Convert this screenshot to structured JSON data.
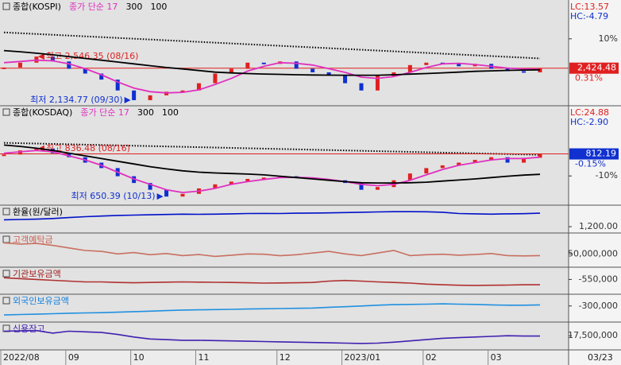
{
  "chart_data": [
    {
      "type": "line",
      "title": "종합(KOSPI)",
      "ma_labels": [
        {
          "text": "종가 단순 17",
          "color": "#e030c0"
        },
        {
          "text": "300",
          "color": "#000000"
        },
        {
          "text": "100",
          "color": "#000000"
        }
      ],
      "ylim": [
        2140,
        2955
      ],
      "yticks": [
        {
          "value": 2667,
          "label": "10%"
        }
      ],
      "lc": "LC:13.57",
      "hc": "HC:-4.79",
      "last_label": "2,424.48",
      "last_color": "#e02020",
      "change": "0.31%",
      "change_color": "#e02020",
      "high_label": "최고 2,546.35 (08/16)",
      "low_label": "최저 2,134.77 (09/30)",
      "trendline": {
        "values": [
          2720,
          2505
        ]
      },
      "series": [
        {
          "name": "종가",
          "marker": "candle",
          "up_color": "#e02020",
          "down_color": "#1030d0",
          "values": [
            2430,
            2470,
            2520,
            2480,
            2420,
            2380,
            2330,
            2240,
            2160,
            2200,
            2230,
            2240,
            2300,
            2380,
            2420,
            2470,
            2460,
            2480,
            2420,
            2390,
            2370,
            2300,
            2240,
            2360,
            2390,
            2450,
            2470,
            2460,
            2440,
            2460,
            2420,
            2400,
            2390,
            2424.48
          ]
        },
        {
          "name": "단순 17",
          "color": "#e030c0",
          "values": [
            2470,
            2480,
            2490,
            2485,
            2460,
            2420,
            2370,
            2310,
            2260,
            2230,
            2220,
            2225,
            2245,
            2290,
            2340,
            2400,
            2440,
            2470,
            2465,
            2450,
            2420,
            2390,
            2350,
            2340,
            2355,
            2390,
            2430,
            2460,
            2465,
            2455,
            2440,
            2425,
            2418,
            2415
          ]
        },
        {
          "name": "단순 300",
          "color": "#000000",
          "values": [
            2570,
            2560,
            2548,
            2535,
            2520,
            2505,
            2490,
            2475,
            2460,
            2445,
            2430,
            2418,
            2405,
            2392,
            2385,
            2380,
            2376,
            2373,
            2370,
            2368,
            2367,
            2366,
            2366,
            2366,
            2370,
            2375,
            2380,
            2386,
            2392,
            2398,
            2402,
            2406,
            2409,
            2411
          ]
        }
      ]
    },
    {
      "type": "line",
      "title": "종합(KOSDAQ)",
      "ma_labels": [
        {
          "text": "종가 단순 17",
          "color": "#e030c0"
        },
        {
          "text": "300",
          "color": "#000000"
        },
        {
          "text": "100",
          "color": "#000000"
        }
      ],
      "ylim": [
        635,
        975
      ],
      "yticks": [
        {
          "value": 731,
          "label": "-10%"
        }
      ],
      "lc": "LC:24.88",
      "hc": "HC:-2.90",
      "last_label": "812.19",
      "last_color": "#1030d0",
      "change": "-0.15%",
      "change_color": "#1030d0",
      "high_label": "최고 836.48 (08/16)",
      "low_label": "최저 650.39 (10/13)",
      "trendline": {
        "values": [
          853,
          809
        ]
      },
      "series": [
        {
          "name": "종가",
          "marker": "candle",
          "up_color": "#e02020",
          "down_color": "#1030d0",
          "values": [
            810,
            825,
            832,
            815,
            800,
            780,
            760,
            730,
            705,
            680,
            655,
            665,
            685,
            700,
            710,
            720,
            725,
            730,
            725,
            720,
            715,
            705,
            680,
            690,
            715,
            740,
            760,
            770,
            780,
            790,
            800,
            780,
            798,
            812.19
          ]
        },
        {
          "name": "단순 17",
          "color": "#e030c0",
          "values": [
            815,
            820,
            825,
            820,
            805,
            790,
            770,
            745,
            720,
            700,
            680,
            670,
            675,
            685,
            700,
            710,
            718,
            725,
            726,
            724,
            718,
            710,
            700,
            695,
            700,
            715,
            735,
            755,
            770,
            780,
            790,
            795,
            795,
            800
          ]
        },
        {
          "name": "단순 300",
          "color": "#000000",
          "values": [
            845,
            840,
            833,
            825,
            815,
            805,
            795,
            785,
            775,
            765,
            757,
            750,
            745,
            742,
            740,
            738,
            735,
            730,
            725,
            720,
            715,
            710,
            706,
            705,
            705,
            706,
            708,
            712,
            716,
            720,
            725,
            730,
            734,
            737
          ]
        }
      ]
    },
    {
      "type": "line",
      "title": "환율(원/달러)",
      "title_color": "#000000",
      "ylim": [
        1150,
        1480
      ],
      "yticks": [
        {
          "value": 1200,
          "label": "1,200.00"
        }
      ],
      "series": [
        {
          "name": "환율(원/달러)",
          "color": "#0010c8",
          "values": [
            1310,
            1315,
            1320,
            1330,
            1345,
            1360,
            1370,
            1380,
            1385,
            1390,
            1395,
            1400,
            1398,
            1400,
            1405,
            1410,
            1412,
            1410,
            1415,
            1418,
            1420,
            1425,
            1430,
            1435,
            1440,
            1440,
            1438,
            1430,
            1410,
            1405,
            1400,
            1405,
            1408,
            1415
          ]
        }
      ]
    },
    {
      "type": "line",
      "title": "고객예탁금",
      "title_color": "#c86050",
      "ylim": [
        44000000,
        60000000
      ],
      "yticks": [
        {
          "value": 50000000,
          "label": "50,000,000"
        }
      ],
      "series": [
        {
          "name": "고객예탁금",
          "color": "#c87060",
          "values": [
            56500000,
            55800000,
            56200000,
            55000000,
            53500000,
            52000000,
            51500000,
            50000000,
            50800000,
            49500000,
            50200000,
            49000000,
            49600000,
            48500000,
            49200000,
            50000000,
            49800000,
            48900000,
            49500000,
            50500000,
            51500000,
            50000000,
            49000000,
            50500000,
            52000000,
            49000000,
            49500000,
            49800000,
            49200000,
            49600000,
            50200000,
            49000000,
            48800000,
            49000000
          ]
        }
      ]
    },
    {
      "type": "line",
      "title": "기관보유금액",
      "title_color": "#a02020",
      "ylim": [
        -620000,
        -500000
      ],
      "yticks": [
        {
          "value": -550000,
          "label": "-550,000"
        }
      ],
      "series": [
        {
          "name": "기관보유금액",
          "color": "#b03030",
          "values": [
            -540000,
            -545000,
            -550000,
            -555000,
            -560000,
            -565000,
            -565000,
            -568000,
            -570000,
            -568000,
            -566000,
            -565000,
            -566000,
            -567000,
            -568000,
            -570000,
            -572000,
            -571000,
            -570000,
            -568000,
            -560000,
            -556000,
            -560000,
            -565000,
            -568000,
            -572000,
            -578000,
            -582000,
            -585000,
            -586000,
            -585000,
            -584000,
            -582000,
            -582000
          ]
        }
      ]
    },
    {
      "type": "line",
      "title": "외국인보유금액",
      "title_color": "#1080e0",
      "ylim": [
        -350000,
        -270000
      ],
      "yticks": [
        {
          "value": -300000,
          "label": "-300,000"
        }
      ],
      "series": [
        {
          "name": "외국인보유금액",
          "color": "#2090e0",
          "values": [
            -335000,
            -333000,
            -332000,
            -330000,
            -328000,
            -327000,
            -326000,
            -324000,
            -322000,
            -320000,
            -318000,
            -316000,
            -315000,
            -314000,
            -313000,
            -312000,
            -311000,
            -310000,
            -309000,
            -308000,
            -305000,
            -303000,
            -300000,
            -297000,
            -295000,
            -294000,
            -293000,
            -292000,
            -293000,
            -294000,
            -296000,
            -297000,
            -297000,
            -296000
          ]
        }
      ]
    },
    {
      "type": "line",
      "title": "신용잔고",
      "title_color": "#4020b0",
      "ylim": [
        15800000,
        19000000
      ],
      "yticks": [
        {
          "value": 17500000,
          "label": "17,500,000"
        }
      ],
      "series": [
        {
          "name": "신용잔고",
          "color": "#4020b0",
          "values": [
            18200000,
            18250000,
            18300000,
            17900000,
            18200000,
            18100000,
            18000000,
            17700000,
            17300000,
            17000000,
            16900000,
            16800000,
            16800000,
            16750000,
            16700000,
            16650000,
            16600000,
            16550000,
            16500000,
            16450000,
            16400000,
            16350000,
            16300000,
            16350000,
            16500000,
            16700000,
            16900000,
            17100000,
            17200000,
            17300000,
            17400000,
            17500000,
            17450000,
            17450000
          ]
        }
      ]
    }
  ],
  "x_axis": {
    "categories": [
      "2022/08",
      null,
      null,
      null,
      "09",
      null,
      null,
      null,
      "10",
      null,
      null,
      null,
      "11",
      null,
      null,
      null,
      null,
      "12",
      null,
      null,
      null,
      "2023/01",
      null,
      null,
      null,
      null,
      "02",
      null,
      null,
      null,
      "03",
      null,
      null,
      null
    ],
    "last_date": "03/23"
  }
}
